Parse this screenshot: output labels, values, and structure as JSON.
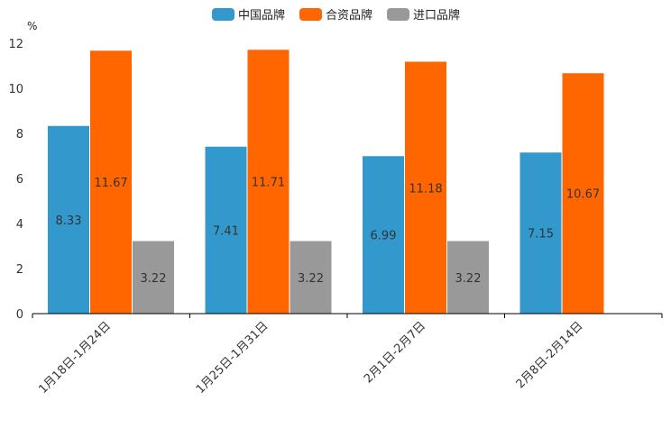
{
  "chart_data": {
    "type": "bar",
    "title": "",
    "xlabel": "",
    "ylabel": "%",
    "ylim": [
      0,
      12
    ],
    "yticks": [
      0,
      2,
      4,
      6,
      8,
      10,
      12
    ],
    "legend_position": "top-center",
    "categories": [
      "1月18日-1月24日",
      "1月25日-1月31日",
      "2月1日-2月7日",
      "2月8日-2月14日"
    ],
    "series": [
      {
        "name": "中国品牌",
        "color": "#3399cc",
        "values": [
          8.33,
          7.41,
          6.99,
          7.15
        ]
      },
      {
        "name": "合资品牌",
        "color": "#ff6600",
        "values": [
          11.67,
          11.71,
          11.18,
          10.67
        ]
      },
      {
        "name": "进口品牌",
        "color": "#999999",
        "values": [
          3.22,
          3.22,
          3.22,
          null
        ]
      }
    ]
  }
}
